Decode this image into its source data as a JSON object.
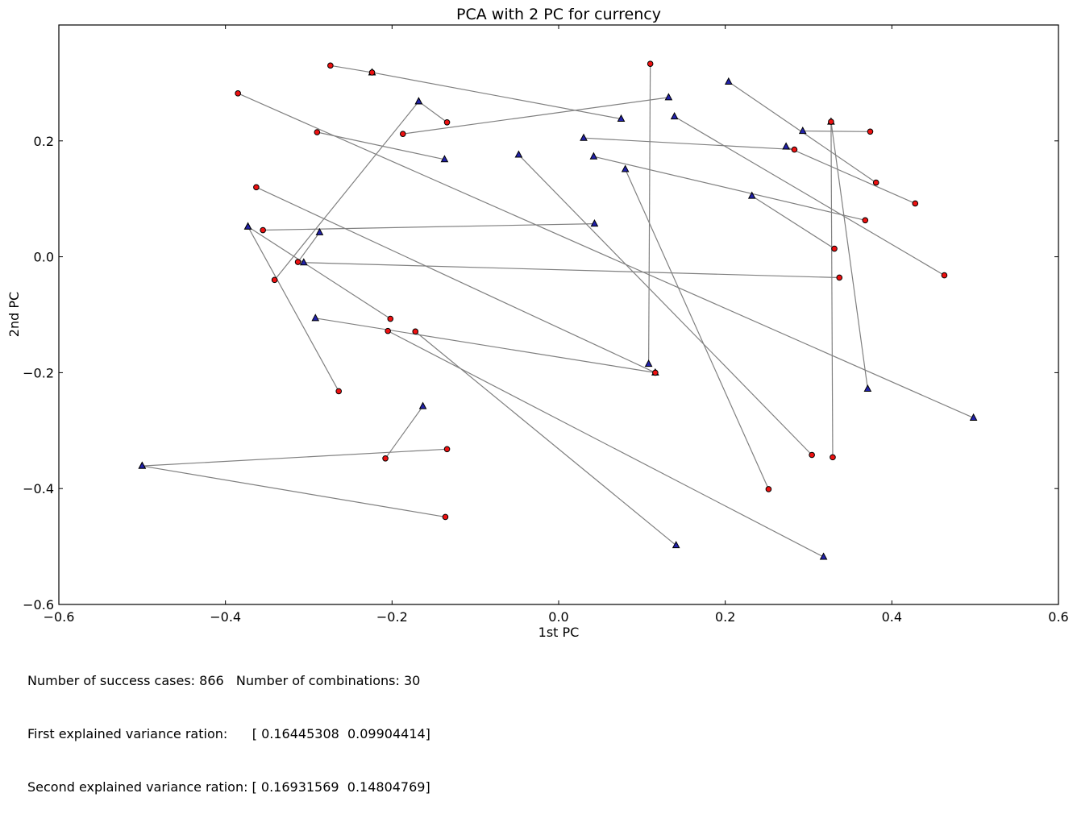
{
  "chart_data": {
    "type": "scatter",
    "title": "PCA with 2 PC for currency",
    "xlabel": "1st PC",
    "ylabel": "2nd PC",
    "xlim": [
      -0.6,
      0.6
    ],
    "ylim": [
      -0.6,
      0.4
    ],
    "xticks": [
      -0.6,
      -0.4,
      -0.2,
      0.0,
      0.2,
      0.4,
      0.6
    ],
    "xtick_labels": [
      "−0.6",
      "−0.4",
      "−0.2",
      "0.0",
      "0.2",
      "0.4",
      "0.6"
    ],
    "yticks": [
      -0.6,
      -0.4,
      -0.2,
      0.0,
      0.2
    ],
    "ytick_labels": [
      "−0.6",
      "−0.4",
      "−0.2",
      "0.0",
      "0.2"
    ],
    "grid": false,
    "series": [
      {
        "marker": "circle",
        "color": "#ee1111"
      },
      {
        "marker": "triangle",
        "color": "#2222aa"
      }
    ],
    "line_color": "#808080",
    "pairs": [
      {
        "circle": [
          0.11,
          0.333
        ],
        "triangle": [
          0.108,
          -0.185
        ]
      },
      {
        "circle": [
          -0.274,
          0.33
        ],
        "triangle": [
          -0.224,
          0.318
        ]
      },
      {
        "circle": [
          -0.224,
          0.318
        ],
        "triangle": [
          0.075,
          0.238
        ]
      },
      {
        "circle": [
          -0.385,
          0.282
        ],
        "triangle": [
          0.498,
          -0.278
        ]
      },
      {
        "circle": [
          -0.29,
          0.215
        ],
        "triangle": [
          -0.137,
          0.168
        ]
      },
      {
        "circle": [
          -0.187,
          0.212
        ],
        "triangle": [
          0.132,
          0.275
        ]
      },
      {
        "circle": [
          -0.134,
          0.232
        ],
        "triangle": [
          -0.168,
          0.268
        ]
      },
      {
        "circle": [
          -0.341,
          -0.04
        ],
        "triangle": [
          -0.168,
          0.268
        ]
      },
      {
        "circle": [
          -0.363,
          0.12
        ],
        "triangle": [
          0.116,
          -0.2
        ]
      },
      {
        "circle": [
          -0.355,
          0.046
        ],
        "triangle": [
          0.043,
          0.057
        ]
      },
      {
        "circle": [
          -0.313,
          -0.009
        ],
        "triangle": [
          -0.287,
          0.042
        ]
      },
      {
        "circle": [
          0.337,
          -0.036
        ],
        "triangle": [
          -0.306,
          -0.01
        ]
      },
      {
        "circle": [
          -0.202,
          -0.107
        ],
        "triangle": [
          -0.373,
          0.052
        ]
      },
      {
        "circle": [
          -0.264,
          -0.232
        ],
        "triangle": [
          -0.373,
          0.052
        ]
      },
      {
        "circle": [
          0.116,
          -0.2
        ],
        "triangle": [
          -0.292,
          -0.106
        ]
      },
      {
        "circle": [
          -0.205,
          -0.128
        ],
        "triangle": [
          0.318,
          -0.518
        ]
      },
      {
        "circle": [
          -0.172,
          -0.129
        ],
        "triangle": [
          0.141,
          -0.498
        ]
      },
      {
        "circle": [
          -0.208,
          -0.348
        ],
        "triangle": [
          -0.163,
          -0.258
        ]
      },
      {
        "circle": [
          -0.134,
          -0.332
        ],
        "triangle": [
          -0.5,
          -0.361
        ]
      },
      {
        "circle": [
          -0.136,
          -0.449
        ],
        "triangle": [
          -0.5,
          -0.361
        ]
      },
      {
        "circle": [
          0.304,
          -0.342
        ],
        "triangle": [
          -0.048,
          0.176
        ]
      },
      {
        "circle": [
          0.252,
          -0.401
        ],
        "triangle": [
          0.08,
          0.151
        ]
      },
      {
        "circle": [
          0.329,
          -0.346
        ],
        "triangle": [
          0.327,
          0.233
        ]
      },
      {
        "circle": [
          0.283,
          0.185
        ],
        "triangle": [
          0.03,
          0.205
        ]
      },
      {
        "circle": [
          0.368,
          0.063
        ],
        "triangle": [
          0.042,
          0.173
        ]
      },
      {
        "circle": [
          0.331,
          0.014
        ],
        "triangle": [
          0.232,
          0.105
        ]
      },
      {
        "circle": [
          0.463,
          -0.032
        ],
        "triangle": [
          0.139,
          0.242
        ]
      },
      {
        "circle": [
          0.428,
          0.092
        ],
        "triangle": [
          0.273,
          0.19
        ]
      },
      {
        "circle": [
          0.381,
          0.128
        ],
        "triangle": [
          0.204,
          0.302
        ]
      },
      {
        "circle": [
          0.374,
          0.216
        ],
        "triangle": [
          0.293,
          0.217
        ]
      },
      {
        "circle": [
          0.327,
          0.233
        ],
        "triangle": [
          0.371,
          -0.228
        ]
      }
    ]
  },
  "footer": {
    "line1": "Number of success cases: 866   Number of combinations: 30",
    "line2": "First explained variance ration:      [ 0.16445308  0.09904414]",
    "line3": "Second explained variance ration: [ 0.16931569  0.14804769]"
  }
}
